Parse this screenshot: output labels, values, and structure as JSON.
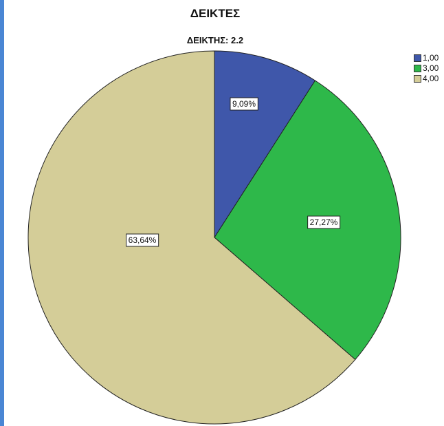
{
  "chart_data": {
    "type": "pie",
    "title": "ΔΕΙΚΤΕΣ",
    "subtitle": "ΔΕΙΚΤΗΣ: 2.2",
    "legend_position": "top-right",
    "slices": [
      {
        "name": "1,00",
        "value": 9.09,
        "label": "9,09%",
        "color": "#3f57aa"
      },
      {
        "name": "3,00",
        "value": 27.27,
        "label": "27,27%",
        "color": "#2eb84a"
      },
      {
        "name": "4,00",
        "value": 63.64,
        "label": "63,64%",
        "color": "#d4cd98"
      }
    ]
  }
}
